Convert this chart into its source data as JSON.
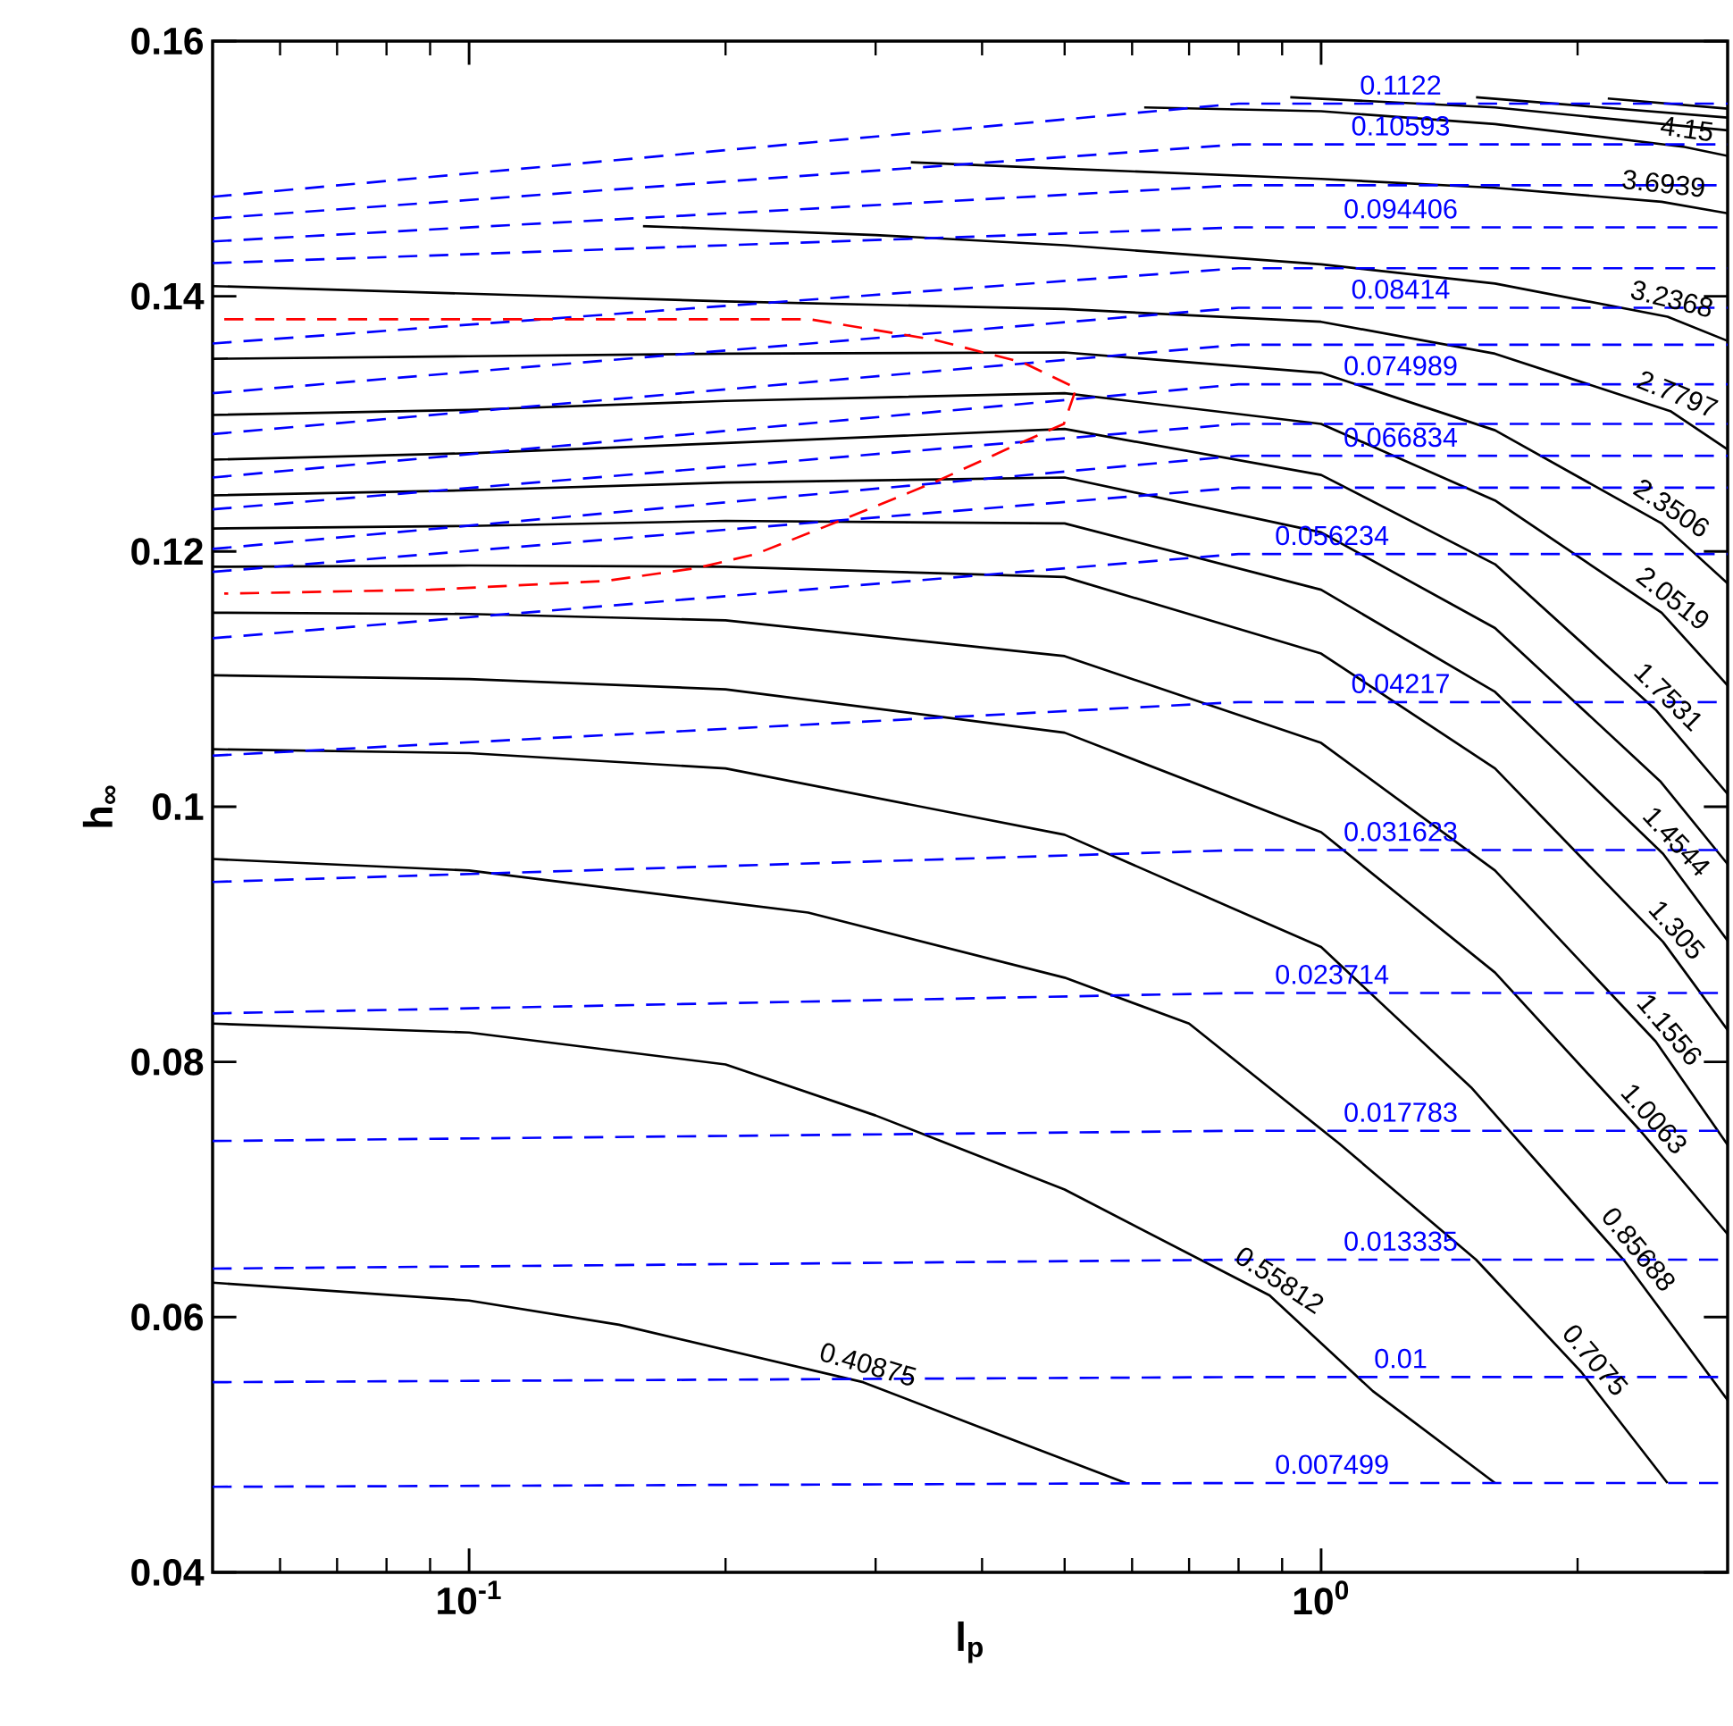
{
  "chart_data": {
    "type": "line",
    "xlabel": "l$_{p}$",
    "ylabel": "h$_{∞}$",
    "log": "x",
    "xlim": [
      0.05,
      3
    ],
    "ylim": [
      0.04,
      0.16
    ],
    "xticks": [
      {
        "value": 0.1,
        "label": "10$^{-1}$"
      },
      {
        "value": 1,
        "label": "10$^{0}$"
      }
    ],
    "yticks": [
      0.04,
      0.06,
      0.08,
      0.1,
      0.12,
      0.14,
      0.16
    ],
    "series": [
      {
        "color": "#000000",
        "line_style": "solid",
        "x": [
          0.05,
          0.1,
          0.15,
          0.29,
          0.4,
          0.59
        ],
        "values": [
          0.0627,
          0.0613,
          0.0594,
          0.0549,
          0.0513,
          0.047
        ]
      },
      {
        "color": "#000000",
        "line_style": "solid",
        "x": [
          0.05,
          0.1,
          0.2,
          0.3,
          0.5,
          0.87,
          1.15,
          1.6
        ],
        "values": [
          0.083,
          0.0823,
          0.0798,
          0.0758,
          0.07,
          0.0617,
          0.0542,
          0.047
        ]
      },
      {
        "color": "#000000",
        "line_style": "solid",
        "x": [
          0.05,
          0.1,
          0.25,
          0.5,
          0.7,
          1.05,
          1.52,
          2.02,
          2.55
        ],
        "values": [
          0.0959,
          0.095,
          0.0917,
          0.0866,
          0.083,
          0.0736,
          0.0645,
          0.0557,
          0.047
        ]
      },
      {
        "color": "#000000",
        "line_style": "solid",
        "x": [
          0.05,
          0.1,
          0.2,
          0.5,
          1,
          1.5,
          2.27,
          3
        ],
        "values": [
          0.1045,
          0.1042,
          0.103,
          0.0978,
          0.089,
          0.078,
          0.0644,
          0.0535
        ]
      },
      {
        "color": "#000000",
        "line_style": "solid",
        "x": [
          0.05,
          0.1,
          0.2,
          0.5,
          1,
          1.6,
          2.37,
          3
        ],
        "values": [
          0.1103,
          0.11,
          0.1092,
          0.1058,
          0.098,
          0.087,
          0.0746,
          0.0665
        ]
      },
      {
        "color": "#000000",
        "line_style": "solid",
        "x": [
          0.05,
          0.1,
          0.2,
          0.5,
          1,
          1.6,
          2.47,
          3
        ],
        "values": [
          0.1152,
          0.1151,
          0.1146,
          0.1118,
          0.105,
          0.095,
          0.0816,
          0.0735
        ]
      },
      {
        "color": "#000000",
        "line_style": "solid",
        "x": [
          0.05,
          0.1,
          0.2,
          0.5,
          1,
          1.6,
          2.52,
          3
        ],
        "values": [
          0.1188,
          0.1189,
          0.1188,
          0.118,
          0.112,
          0.103,
          0.0894,
          0.0825
        ]
      },
      {
        "color": "#000000",
        "line_style": "solid",
        "x": [
          0.05,
          0.1,
          0.2,
          0.5,
          1,
          1.6,
          2.52,
          3
        ],
        "values": [
          0.1218,
          0.122,
          0.1224,
          0.1222,
          0.117,
          0.109,
          0.0963,
          0.0895
        ]
      },
      {
        "color": "#000000",
        "line_style": "solid",
        "x": [
          0.05,
          0.1,
          0.2,
          0.5,
          1,
          1.6,
          2.5,
          3
        ],
        "values": [
          0.1244,
          0.1248,
          0.1254,
          0.1258,
          0.1215,
          0.114,
          0.102,
          0.0955
        ]
      },
      {
        "color": "#000000",
        "line_style": "solid",
        "x": [
          0.05,
          0.1,
          0.2,
          0.5,
          1,
          1.6,
          2.47,
          3
        ],
        "values": [
          0.1272,
          0.1277,
          0.1285,
          0.1296,
          0.126,
          0.119,
          0.1076,
          0.101
        ]
      },
      {
        "color": "#000000",
        "line_style": "solid",
        "x": [
          0.05,
          0.1,
          0.2,
          0.5,
          1,
          1.6,
          2.51,
          3
        ],
        "values": [
          0.1307,
          0.1311,
          0.1318,
          0.1324,
          0.13,
          0.124,
          0.1152,
          0.1095
        ]
      },
      {
        "color": "#000000",
        "line_style": "solid",
        "x": [
          0.05,
          0.1,
          0.2,
          0.5,
          1,
          1.6,
          2.51,
          3
        ],
        "values": [
          0.1351,
          0.1353,
          0.1355,
          0.1356,
          0.134,
          0.1295,
          0.1222,
          0.1175
        ]
      },
      {
        "color": "#000000",
        "line_style": "solid",
        "x": [
          0.05,
          0.1,
          0.2,
          0.5,
          1,
          1.6,
          2.57,
          3
        ],
        "values": [
          0.1408,
          0.1402,
          0.1396,
          0.139,
          0.138,
          0.1355,
          0.131,
          0.128
        ]
      },
      {
        "color": "#000000",
        "line_style": "solid",
        "x": [
          0.16,
          0.3,
          0.5,
          1,
          1.6,
          2.55,
          3
        ],
        "values": [
          0.1455,
          0.1448,
          0.144,
          0.1425,
          0.141,
          0.1384,
          0.1365
        ]
      },
      {
        "color": "#000000",
        "line_style": "solid",
        "x": [
          0.33,
          0.5,
          1,
          1.6,
          2.51,
          3
        ],
        "values": [
          0.1505,
          0.15,
          0.1492,
          0.1485,
          0.1474,
          0.1465
        ]
      },
      {
        "color": "#000000",
        "line_style": "solid",
        "x": [
          0.62,
          1,
          1.6,
          2.67,
          3
        ],
        "values": [
          0.1548,
          0.1545,
          0.1535,
          0.1517,
          0.151
        ]
      },
      {
        "color": "#000000",
        "line_style": "solid",
        "x": [
          0.92,
          1.6,
          3
        ],
        "values": [
          0.1556,
          0.1548,
          0.153
        ]
      },
      {
        "color": "#000000",
        "line_style": "solid",
        "x": [
          1.52,
          3
        ],
        "values": [
          0.1556,
          0.154
        ]
      },
      {
        "color": "#000000",
        "line_style": "solid",
        "x": [
          2.17,
          3
        ],
        "values": [
          0.1555,
          0.1547
        ]
      },
      {
        "color": "#0000ff",
        "line_style": "dashed",
        "x": [
          0.05,
          0.8,
          1.24,
          3
        ],
        "values": [
          0.1478,
          0.1551,
          0.1551,
          0.1551
        ]
      },
      {
        "color": "#0000ff",
        "line_style": "dashed",
        "x": [
          0.05,
          0.8,
          1.24,
          3
        ],
        "values": [
          0.1461,
          0.1519,
          0.1519,
          0.1519
        ]
      },
      {
        "color": "#0000ff",
        "line_style": "dashed",
        "x": [
          0.05,
          0.8,
          3
        ],
        "values": [
          0.1443,
          0.1487,
          0.1487
        ]
      },
      {
        "color": "#0000ff",
        "line_style": "dashed",
        "x": [
          0.05,
          0.8,
          1.24,
          3
        ],
        "values": [
          0.1426,
          0.1454,
          0.1454,
          0.1454
        ]
      },
      {
        "color": "#0000ff",
        "line_style": "dashed",
        "x": [
          0.05,
          0.8,
          3
        ],
        "values": [
          0.1363,
          0.1422,
          0.1422
        ]
      },
      {
        "color": "#0000ff",
        "line_style": "dashed",
        "x": [
          0.05,
          0.8,
          1.24,
          3
        ],
        "values": [
          0.1324,
          0.1391,
          0.1391,
          0.1391
        ]
      },
      {
        "color": "#0000ff",
        "line_style": "dashed",
        "x": [
          0.05,
          0.8,
          3
        ],
        "values": [
          0.1292,
          0.1362,
          0.1362
        ]
      },
      {
        "color": "#0000ff",
        "line_style": "dashed",
        "x": [
          0.05,
          0.8,
          1.24,
          3
        ],
        "values": [
          0.1258,
          0.1331,
          0.1331,
          0.1331
        ]
      },
      {
        "color": "#0000ff",
        "line_style": "dashed",
        "x": [
          0.05,
          0.8,
          3
        ],
        "values": [
          0.1233,
          0.13,
          0.13
        ]
      },
      {
        "color": "#0000ff",
        "line_style": "dashed",
        "x": [
          0.05,
          0.8,
          1.24,
          3
        ],
        "values": [
          0.1202,
          0.1275,
          0.1275,
          0.1275
        ]
      },
      {
        "color": "#0000ff",
        "line_style": "dashed",
        "x": [
          0.05,
          0.8,
          3
        ],
        "values": [
          0.1184,
          0.125,
          0.125
        ]
      },
      {
        "color": "#0000ff",
        "line_style": "dashed",
        "x": [
          0.05,
          0.8,
          1.03,
          3
        ],
        "values": [
          0.1132,
          0.1198,
          0.1198,
          0.1198
        ]
      },
      {
        "color": "#0000ff",
        "line_style": "dashed",
        "x": [
          0.05,
          0.8,
          1.24,
          3
        ],
        "values": [
          0.104,
          0.1082,
          0.1082,
          0.1082
        ]
      },
      {
        "color": "#0000ff",
        "line_style": "dashed",
        "x": [
          0.05,
          0.8,
          1.24,
          3
        ],
        "values": [
          0.0941,
          0.0966,
          0.0966,
          0.0966
        ]
      },
      {
        "color": "#0000ff",
        "line_style": "dashed",
        "x": [
          0.05,
          0.8,
          1.03,
          3
        ],
        "values": [
          0.0838,
          0.0854,
          0.0854,
          0.0854
        ]
      },
      {
        "color": "#0000ff",
        "line_style": "dashed",
        "x": [
          0.05,
          0.8,
          1.24,
          3
        ],
        "values": [
          0.0738,
          0.0746,
          0.0746,
          0.0746
        ]
      },
      {
        "color": "#0000ff",
        "line_style": "dashed",
        "x": [
          0.05,
          0.8,
          1.24,
          3
        ],
        "values": [
          0.0638,
          0.0645,
          0.0645,
          0.0645
        ]
      },
      {
        "color": "#0000ff",
        "line_style": "dashed",
        "x": [
          0.05,
          0.8,
          1.24,
          3
        ],
        "values": [
          0.0549,
          0.0553,
          0.0553,
          0.0553
        ]
      },
      {
        "color": "#0000ff",
        "line_style": "dashed",
        "x": [
          0.05,
          0.8,
          1.03,
          3
        ],
        "values": [
          0.0467,
          0.047,
          0.047,
          0.047
        ]
      },
      {
        "color": "#ff0000",
        "line_style": "dashed",
        "x": [
          0.0516,
          0.251,
          0.351,
          0.447,
          0.516,
          0.499,
          0.447,
          0.351,
          0.277,
          0.217,
          0.185,
          0.145,
          0.09,
          0.0516
        ],
        "values": [
          0.1382,
          0.1382,
          0.1366,
          0.1348,
          0.1328,
          0.13,
          0.1286,
          0.1254,
          0.1226,
          0.1198,
          0.1187,
          0.1177,
          0.117,
          0.1167
        ]
      }
    ],
    "annotations": [
      {
        "text": "0.40875",
        "x": 0.29,
        "y": 0.0549
      },
      {
        "text": "0.55812",
        "x": 0.87,
        "y": 0.0617
      },
      {
        "text": "0.7075",
        "x": 2.02,
        "y": 0.0557
      },
      {
        "text": "0.85688",
        "x": 2.27,
        "y": 0.0644
      },
      {
        "text": "1.0063",
        "x": 2.37,
        "y": 0.0746
      },
      {
        "text": "1.1556",
        "x": 2.47,
        "y": 0.0816
      },
      {
        "text": "1.305",
        "x": 2.52,
        "y": 0.0894
      },
      {
        "text": "1.4544",
        "x": 2.52,
        "y": 0.0963
      },
      {
        "text": "1.7531",
        "x": 2.47,
        "y": 0.1076
      },
      {
        "text": "2.0519",
        "x": 2.51,
        "y": 0.1152
      },
      {
        "text": "2.3506",
        "x": 2.51,
        "y": 0.1222
      },
      {
        "text": "2.7797",
        "x": 2.57,
        "y": 0.131
      },
      {
        "text": "3.2368",
        "x": 2.55,
        "y": 0.1384
      },
      {
        "text": "3.6939",
        "x": 2.51,
        "y": 0.1474
      },
      {
        "text": "4.15",
        "x": 2.67,
        "y": 0.1517
      },
      {
        "text": "0.1122",
        "x": 1.24,
        "y": 0.1551
      },
      {
        "text": "0.10593",
        "x": 1.24,
        "y": 0.1519
      },
      {
        "text": "0.094406",
        "x": 1.24,
        "y": 0.1454
      },
      {
        "text": "0.08414",
        "x": 1.24,
        "y": 0.1391
      },
      {
        "text": "0.074989",
        "x": 1.24,
        "y": 0.1331
      },
      {
        "text": "0.066834",
        "x": 1.24,
        "y": 0.1275
      },
      {
        "text": "0.056234",
        "x": 1.03,
        "y": 0.1198
      },
      {
        "text": "0.04217",
        "x": 1.24,
        "y": 0.1082
      },
      {
        "text": "0.031623",
        "x": 1.24,
        "y": 0.0966
      },
      {
        "text": "0.023714",
        "x": 1.03,
        "y": 0.0854
      },
      {
        "text": "0.017783",
        "x": 1.24,
        "y": 0.0746
      },
      {
        "text": "0.013335",
        "x": 1.24,
        "y": 0.0645
      },
      {
        "text": "0.01",
        "x": 1.24,
        "y": 0.0553
      },
      {
        "text": "0.007499",
        "x": 1.03,
        "y": 0.047
      }
    ]
  }
}
